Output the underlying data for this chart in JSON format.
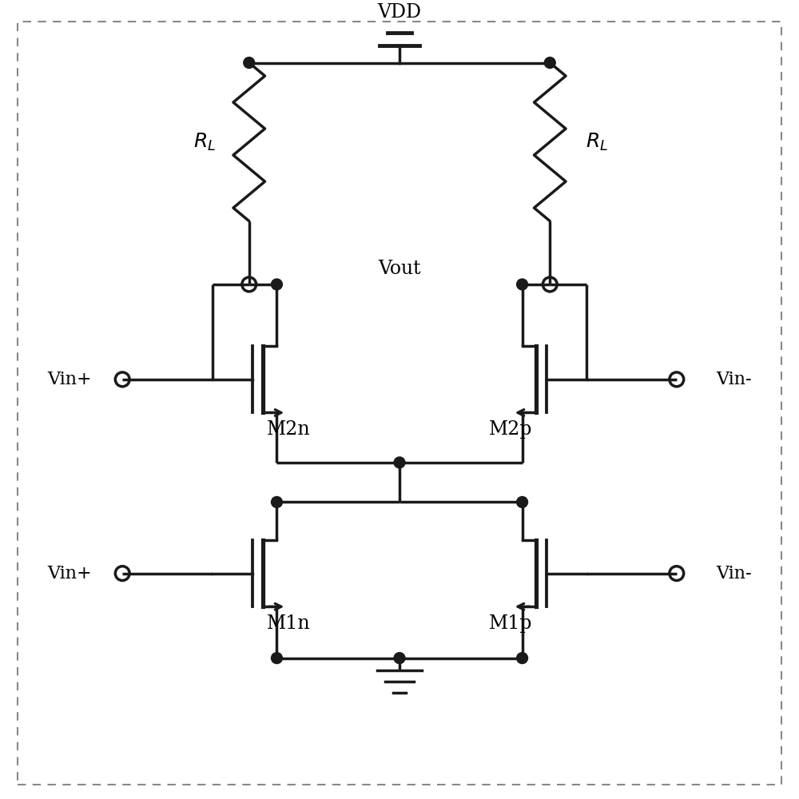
{
  "background_color": "#ffffff",
  "line_color": "#1a1a1a",
  "line_width": 2.5,
  "fig_size": [
    10,
    10
  ],
  "dpi": 100,
  "font_size": 17,
  "vdd_label": "VDD",
  "vout_label": "Vout",
  "m2n_label": "M2n",
  "m2p_label": "M2p",
  "m1n_label": "M1n",
  "m1p_label": "M1p",
  "vinp_label": "Vin+",
  "vinn_label": "Vin-",
  "rl_label": "R_L",
  "border_color": "#888888",
  "border_lw": 1.5
}
